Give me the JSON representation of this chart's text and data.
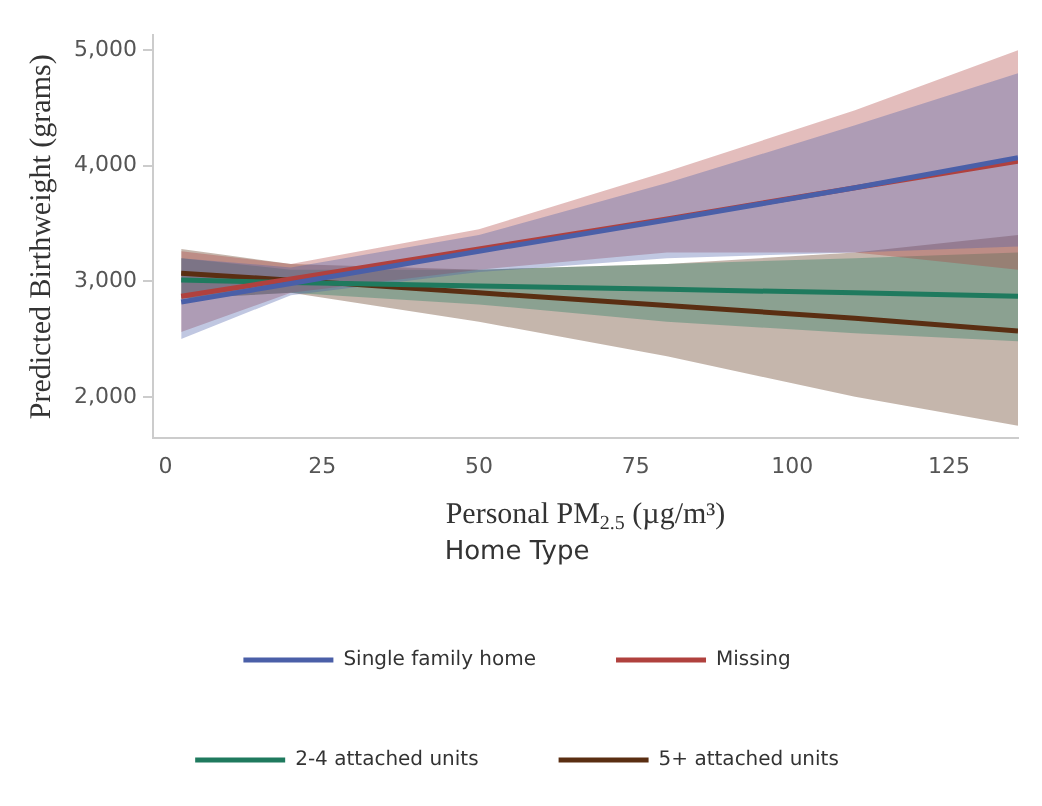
{
  "chart_data": {
    "type": "line",
    "xlabel": "Personal PM$_{2.5}$ (µg/m³)",
    "ylabel": "Predicted Birthweight (grams)",
    "legend_title": "Home Type",
    "x": [
      2.5,
      20,
      50,
      80,
      110,
      136
    ],
    "series": [
      {
        "name": "Single family home",
        "color": "#4a5fa8",
        "values": [
          2820,
          2980,
          3260,
          3530,
          3810,
          4070
        ],
        "lower": [
          2500,
          2880,
          3080,
          3200,
          3250,
          3300
        ],
        "upper": [
          3200,
          3120,
          3400,
          3850,
          4350,
          4800
        ]
      },
      {
        "name": "Missing",
        "color": "#b0413e",
        "values": [
          2870,
          3020,
          3280,
          3540,
          3810,
          4040
        ],
        "lower": [
          2560,
          2900,
          3100,
          3250,
          3250,
          3100
        ],
        "upper": [
          3260,
          3150,
          3450,
          3950,
          4480,
          5000
        ]
      },
      {
        "name": "2-4 attached units",
        "color": "#1f7a5e",
        "values": [
          3010,
          2990,
          2960,
          2930,
          2900,
          2870
        ],
        "lower": [
          2850,
          2900,
          2800,
          2650,
          2550,
          2480
        ],
        "upper": [
          3200,
          3100,
          3100,
          3150,
          3200,
          3250
        ]
      },
      {
        "name": "5+ attached units",
        "color": "#5a2e12",
        "values": [
          3070,
          3010,
          2900,
          2790,
          2680,
          2570
        ],
        "lower": [
          2850,
          2900,
          2650,
          2350,
          2000,
          1750
        ],
        "upper": [
          3280,
          3150,
          3100,
          3150,
          3250,
          3400
        ]
      }
    ],
    "xlim": [
      -2,
      136
    ],
    "xticks": [
      0,
      25,
      50,
      75,
      100,
      125
    ],
    "ylim": [
      1640,
      5130
    ],
    "yticks": [
      {
        "value": 2000,
        "label": "2,000"
      },
      {
        "value": 3000,
        "label": "3,000"
      },
      {
        "value": 4000,
        "label": "4,000"
      },
      {
        "value": 5000,
        "label": "5,000"
      }
    ],
    "grid": false,
    "legend": "bottom",
    "marker": "none",
    "line_style": "solid"
  }
}
